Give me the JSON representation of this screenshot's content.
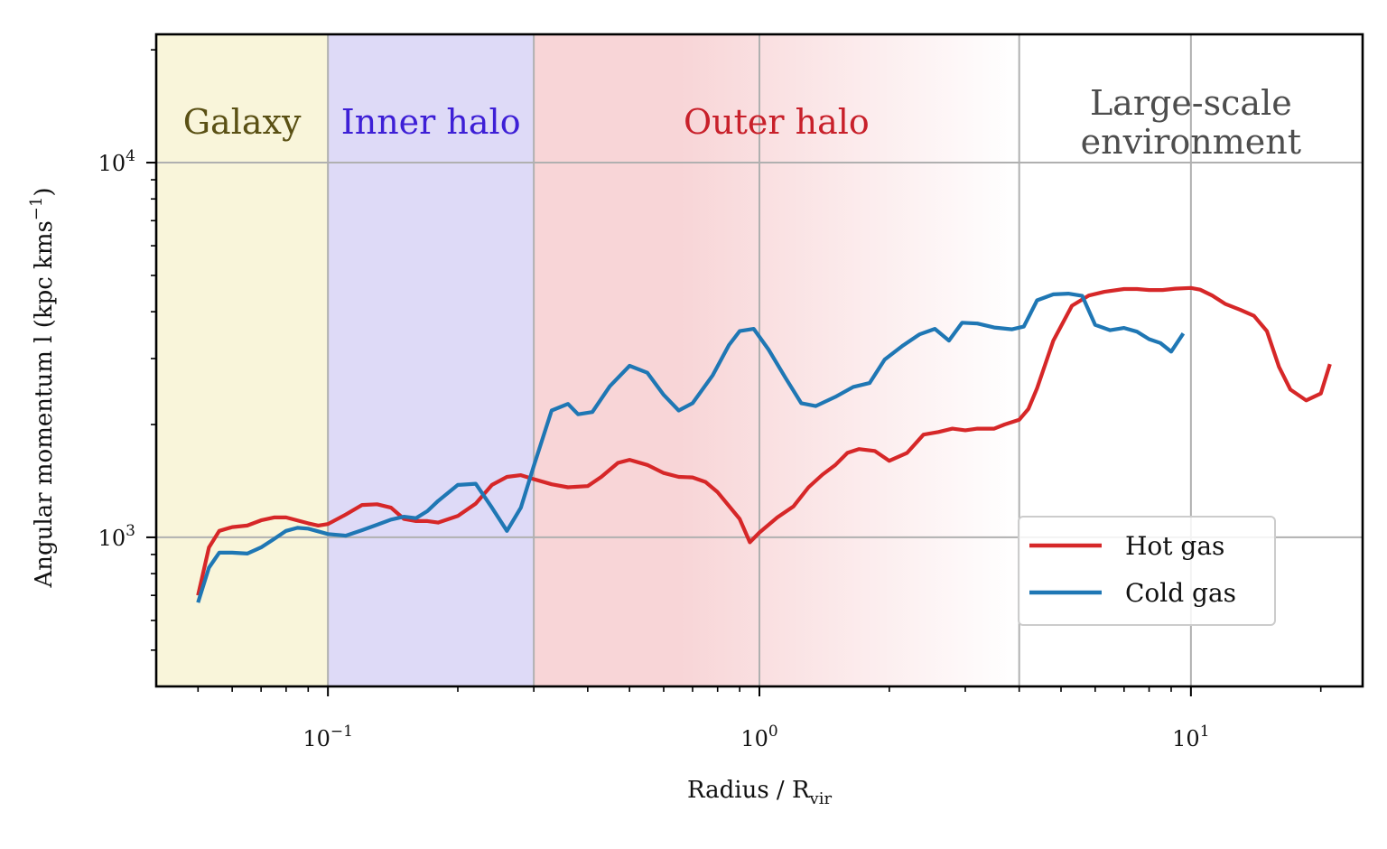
{
  "chart_data": {
    "type": "line",
    "xscale": "log",
    "yscale": "log",
    "xlim": [
      0.04,
      25
    ],
    "ylim": [
      400,
      22000
    ],
    "xlabel": "Radius / R",
    "xlabel_sub": "vir",
    "ylabel": "Angular momentum l  (kpc kms",
    "ylabel_sup": "−1",
    "ylabel_end": ")",
    "x_ticks": [
      {
        "value": 0.1,
        "base": "10",
        "exp": "−1"
      },
      {
        "value": 1,
        "base": "10",
        "exp": "0"
      },
      {
        "value": 10,
        "base": "10",
        "exp": "1"
      }
    ],
    "y_ticks": [
      {
        "value": 1000,
        "base": "10",
        "exp": "3"
      },
      {
        "value": 10000,
        "base": "10",
        "exp": "4"
      }
    ],
    "x_gridlines": [
      0.1,
      0.3,
      1,
      4,
      10
    ],
    "y_gridlines": [
      1000,
      10000
    ],
    "grid": true,
    "legend_position": "lower-right",
    "regions": [
      {
        "label": "Galaxy",
        "x_range": [
          0.04,
          0.1
        ],
        "fill": "#f9f5da",
        "text_color": "#5a5014"
      },
      {
        "label": "Inner halo",
        "x_range": [
          0.1,
          0.3
        ],
        "fill": "#dedaf7",
        "text_color": "#3d1fd6"
      },
      {
        "label": "Outer halo",
        "x_range": [
          0.3,
          4
        ],
        "fill": "#f8d5d7",
        "fade_to": "#ffffff",
        "text_color": "#c8202a"
      },
      {
        "label_lines": [
          "Large-scale",
          "environment"
        ],
        "x_range": [
          4,
          25
        ],
        "fill": "#ffffff",
        "text_color": "#4d4d4d"
      }
    ],
    "series": [
      {
        "name": "Hot gas",
        "color": "#d62728",
        "points": [
          [
            0.05,
            700
          ],
          [
            0.053,
            940
          ],
          [
            0.056,
            1040
          ],
          [
            0.06,
            1065
          ],
          [
            0.065,
            1075
          ],
          [
            0.07,
            1110
          ],
          [
            0.075,
            1130
          ],
          [
            0.08,
            1130
          ],
          [
            0.09,
            1090
          ],
          [
            0.095,
            1075
          ],
          [
            0.1,
            1085
          ],
          [
            0.11,
            1150
          ],
          [
            0.12,
            1220
          ],
          [
            0.13,
            1225
          ],
          [
            0.14,
            1200
          ],
          [
            0.15,
            1120
          ],
          [
            0.16,
            1105
          ],
          [
            0.17,
            1105
          ],
          [
            0.18,
            1095
          ],
          [
            0.2,
            1140
          ],
          [
            0.22,
            1230
          ],
          [
            0.24,
            1380
          ],
          [
            0.26,
            1450
          ],
          [
            0.28,
            1465
          ],
          [
            0.3,
            1430
          ],
          [
            0.33,
            1385
          ],
          [
            0.36,
            1360
          ],
          [
            0.4,
            1370
          ],
          [
            0.43,
            1450
          ],
          [
            0.47,
            1580
          ],
          [
            0.5,
            1610
          ],
          [
            0.55,
            1560
          ],
          [
            0.6,
            1485
          ],
          [
            0.65,
            1450
          ],
          [
            0.7,
            1445
          ],
          [
            0.75,
            1405
          ],
          [
            0.8,
            1320
          ],
          [
            0.9,
            1120
          ],
          [
            0.95,
            970
          ],
          [
            1.0,
            1030
          ],
          [
            1.1,
            1130
          ],
          [
            1.2,
            1210
          ],
          [
            1.3,
            1360
          ],
          [
            1.4,
            1470
          ],
          [
            1.5,
            1560
          ],
          [
            1.6,
            1680
          ],
          [
            1.7,
            1720
          ],
          [
            1.85,
            1700
          ],
          [
            2.0,
            1600
          ],
          [
            2.2,
            1680
          ],
          [
            2.4,
            1880
          ],
          [
            2.6,
            1910
          ],
          [
            2.8,
            1950
          ],
          [
            3.0,
            1930
          ],
          [
            3.2,
            1950
          ],
          [
            3.5,
            1950
          ],
          [
            3.7,
            2000
          ],
          [
            4.0,
            2060
          ],
          [
            4.2,
            2200
          ],
          [
            4.4,
            2500
          ],
          [
            4.8,
            3350
          ],
          [
            5.3,
            4150
          ],
          [
            5.8,
            4420
          ],
          [
            6.3,
            4520
          ],
          [
            7.0,
            4600
          ],
          [
            7.5,
            4600
          ],
          [
            8.0,
            4570
          ],
          [
            8.6,
            4570
          ],
          [
            9.2,
            4610
          ],
          [
            10.0,
            4630
          ],
          [
            10.5,
            4580
          ],
          [
            11.2,
            4420
          ],
          [
            12.0,
            4200
          ],
          [
            13.0,
            4050
          ],
          [
            14.0,
            3900
          ],
          [
            15.0,
            3550
          ],
          [
            16.0,
            2850
          ],
          [
            17.0,
            2480
          ],
          [
            18.5,
            2320
          ],
          [
            20.0,
            2420
          ],
          [
            21.0,
            2900
          ]
        ]
      },
      {
        "name": "Cold gas",
        "color": "#1f77b4",
        "points": [
          [
            0.05,
            670
          ],
          [
            0.053,
            830
          ],
          [
            0.056,
            910
          ],
          [
            0.06,
            910
          ],
          [
            0.065,
            905
          ],
          [
            0.07,
            940
          ],
          [
            0.075,
            990
          ],
          [
            0.08,
            1040
          ],
          [
            0.085,
            1060
          ],
          [
            0.09,
            1055
          ],
          [
            0.1,
            1020
          ],
          [
            0.11,
            1010
          ],
          [
            0.12,
            1045
          ],
          [
            0.13,
            1080
          ],
          [
            0.14,
            1115
          ],
          [
            0.15,
            1135
          ],
          [
            0.16,
            1125
          ],
          [
            0.17,
            1175
          ],
          [
            0.18,
            1250
          ],
          [
            0.2,
            1380
          ],
          [
            0.22,
            1390
          ],
          [
            0.24,
            1200
          ],
          [
            0.26,
            1040
          ],
          [
            0.28,
            1200
          ],
          [
            0.3,
            1550
          ],
          [
            0.33,
            2180
          ],
          [
            0.36,
            2270
          ],
          [
            0.38,
            2130
          ],
          [
            0.41,
            2160
          ],
          [
            0.45,
            2530
          ],
          [
            0.5,
            2870
          ],
          [
            0.55,
            2750
          ],
          [
            0.6,
            2400
          ],
          [
            0.65,
            2180
          ],
          [
            0.7,
            2280
          ],
          [
            0.78,
            2710
          ],
          [
            0.85,
            3260
          ],
          [
            0.9,
            3550
          ],
          [
            0.97,
            3600
          ],
          [
            1.05,
            3170
          ],
          [
            1.15,
            2660
          ],
          [
            1.25,
            2280
          ],
          [
            1.35,
            2240
          ],
          [
            1.5,
            2370
          ],
          [
            1.65,
            2520
          ],
          [
            1.8,
            2580
          ],
          [
            1.95,
            2980
          ],
          [
            2.15,
            3250
          ],
          [
            2.35,
            3480
          ],
          [
            2.55,
            3600
          ],
          [
            2.75,
            3350
          ],
          [
            2.95,
            3740
          ],
          [
            3.2,
            3720
          ],
          [
            3.5,
            3630
          ],
          [
            3.85,
            3590
          ],
          [
            4.1,
            3650
          ],
          [
            4.4,
            4290
          ],
          [
            4.8,
            4450
          ],
          [
            5.2,
            4470
          ],
          [
            5.6,
            4410
          ],
          [
            6.0,
            3690
          ],
          [
            6.5,
            3570
          ],
          [
            7.0,
            3620
          ],
          [
            7.5,
            3540
          ],
          [
            8.0,
            3380
          ],
          [
            8.5,
            3300
          ],
          [
            9.0,
            3130
          ],
          [
            9.6,
            3500
          ]
        ]
      }
    ]
  }
}
